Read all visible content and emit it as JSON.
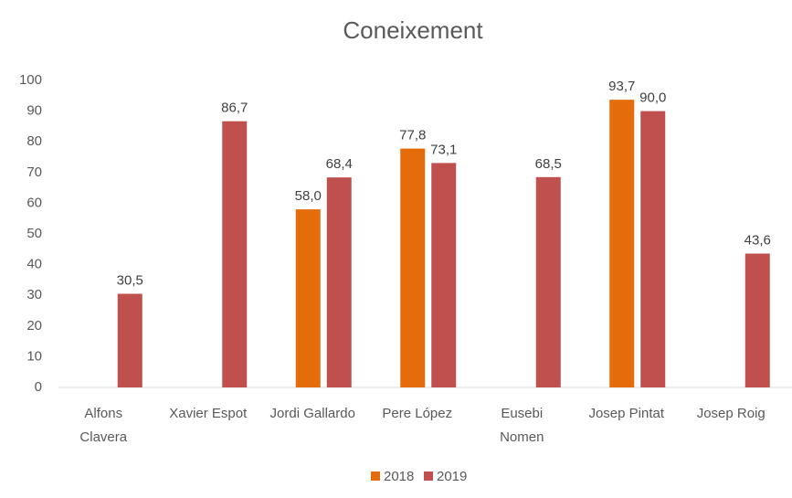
{
  "chart_data": {
    "type": "bar",
    "title": "Coneixement",
    "categories": [
      "Alfons Clavera",
      "Xavier Espot",
      "Jordi Gallardo",
      "Pere López",
      "Eusebi Nomen",
      "Josep Pintat",
      "Josep Roig"
    ],
    "series": [
      {
        "name": "2018",
        "color": "#e46c0a",
        "values": [
          null,
          null,
          58.0,
          77.8,
          null,
          93.7,
          null
        ],
        "value_labels": [
          null,
          null,
          "58,0",
          "77,8",
          null,
          "93,7",
          null
        ]
      },
      {
        "name": "2019",
        "color": "#c0504d",
        "values": [
          30.5,
          86.7,
          68.4,
          73.1,
          68.5,
          90.0,
          43.6
        ],
        "value_labels": [
          "30,5",
          "86,7",
          "68,4",
          "73,1",
          "68,5",
          "90,0",
          "43,6"
        ]
      }
    ],
    "ylim": [
      0,
      100
    ],
    "yticks": [
      0,
      10,
      20,
      30,
      40,
      50,
      60,
      70,
      80,
      90,
      100
    ],
    "grid": false,
    "legend": "bottom"
  }
}
